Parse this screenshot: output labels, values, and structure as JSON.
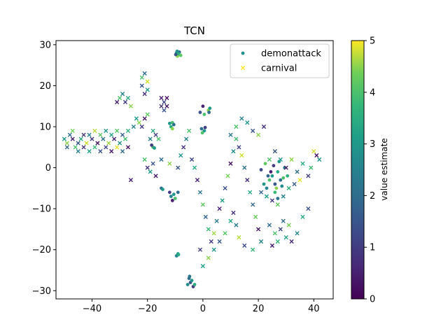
{
  "chart_data": {
    "type": "scatter",
    "title": "TCN",
    "xlim": [
      -53,
      47
    ],
    "ylim": [
      -32,
      31
    ],
    "xticks": [
      -40,
      -20,
      0,
      20,
      40
    ],
    "yticks": [
      -30,
      -20,
      -10,
      0,
      10,
      20,
      30
    ],
    "xtick_labels": [
      "−40",
      "−20",
      "0",
      "20",
      "40"
    ],
    "ytick_labels": [
      "−30",
      "−20",
      "−10",
      "0",
      "10",
      "20",
      "30"
    ],
    "colormap": "viridis",
    "colorbar": {
      "label": "value estimate",
      "range": [
        0,
        5
      ],
      "ticks": [
        0,
        1,
        2,
        3,
        4,
        5
      ],
      "tick_labels": [
        "0",
        "1",
        "2",
        "3",
        "4",
        "5"
      ]
    },
    "legend": {
      "placement": "top-right",
      "entries": [
        {
          "label": "demonattack",
          "marker": "circle",
          "color": "#21918c"
        },
        {
          "label": "carnival",
          "marker": "x",
          "color": "#fde725"
        }
      ]
    },
    "series": [
      {
        "name": "demonattack",
        "marker": "circle",
        "points": [
          [
            -9.5,
            28.0,
            3.0
          ],
          [
            -9.0,
            27.5,
            4.0
          ],
          [
            -8.5,
            28.2,
            2.0
          ],
          [
            -9.2,
            27.2,
            4.5
          ],
          [
            -8.8,
            27.8,
            3.5
          ],
          [
            -9.8,
            27.6,
            1.5
          ],
          [
            -8.0,
            27.4,
            4.2
          ],
          [
            -9.3,
            28.4,
            2.8
          ],
          [
            -11.0,
            11.0,
            4.0
          ],
          [
            -11.5,
            10.0,
            3.5
          ],
          [
            -10.5,
            10.5,
            2.0
          ],
          [
            -11.0,
            9.5,
            4.5
          ],
          [
            -12.0,
            10.8,
            3.0
          ],
          [
            -18.0,
            5.0,
            4.0
          ],
          [
            -18.5,
            5.5,
            1.0
          ],
          [
            -17.5,
            4.8,
            3.0
          ],
          [
            -12.0,
            -6.0,
            1.0
          ],
          [
            -11.5,
            -7.0,
            2.5
          ],
          [
            -10.5,
            -6.5,
            3.0
          ],
          [
            -11.0,
            -8.0,
            0.5
          ],
          [
            -10.0,
            -7.5,
            4.0
          ],
          [
            -9.0,
            -6.0,
            2.0
          ],
          [
            -9.0,
            -21.0,
            3.0
          ],
          [
            -9.5,
            -21.5,
            2.5
          ],
          [
            -8.8,
            -21.2,
            3.5
          ],
          [
            -5.0,
            -27.0,
            2.0
          ],
          [
            -4.5,
            -28.0,
            1.5
          ],
          [
            -4.0,
            -27.5,
            3.0
          ],
          [
            -5.5,
            -28.5,
            2.8
          ],
          [
            -3.5,
            -29.0,
            1.0
          ],
          [
            -4.8,
            -26.5,
            2.2
          ],
          [
            -3.0,
            -28.5,
            3.5
          ],
          [
            0.0,
            15.0,
            0.5
          ],
          [
            -1.0,
            13.5,
            1.5
          ],
          [
            0.5,
            13.0,
            4.0
          ],
          [
            2.0,
            14.0,
            4.5
          ],
          [
            2.5,
            14.5,
            3.0
          ],
          [
            2.2,
            13.5,
            2.0
          ],
          [
            -0.5,
            9.5,
            2.0
          ],
          [
            0.5,
            9.0,
            3.0
          ],
          [
            -0.2,
            8.5,
            4.0
          ],
          [
            0.8,
            9.8,
            1.0
          ],
          [
            -15.0,
            -5.0,
            2.0
          ],
          [
            -14.5,
            -5.3,
            3.0
          ],
          [
            22.0,
            -4.0,
            3.0
          ],
          [
            23.0,
            -5.0,
            2.5
          ],
          [
            24.0,
            -3.0,
            4.0
          ],
          [
            25.0,
            -2.0,
            3.0
          ],
          [
            26.0,
            -4.0,
            1.5
          ],
          [
            27.0,
            -1.0,
            3.5
          ],
          [
            28.0,
            -3.0,
            2.0
          ],
          [
            25.5,
            0.5,
            1.0
          ],
          [
            27.5,
            1.5,
            3.0
          ],
          [
            29.0,
            -2.5,
            4.0
          ],
          [
            24.5,
            -1.0,
            0.5
          ],
          [
            26.5,
            -5.0,
            4.5
          ],
          [
            28.5,
            -4.5,
            2.8
          ],
          [
            23.5,
            -2.0,
            1.8
          ],
          [
            26.0,
            -6.0,
            3.8
          ],
          [
            27.0,
            -7.5,
            2.2
          ],
          [
            21.0,
            -0.5,
            1.2
          ],
          [
            22.5,
            1.0,
            4.2
          ],
          [
            29.5,
            0.0,
            2.5
          ],
          [
            30.5,
            -2.0,
            3.6
          ]
        ]
      },
      {
        "name": "carnival",
        "marker": "x",
        "points": [
          [
            -50,
            7,
            3.0
          ],
          [
            -49,
            6,
            4.5
          ],
          [
            -48,
            8,
            2.0
          ],
          [
            -47,
            7,
            0.5
          ],
          [
            -46,
            5,
            4.0
          ],
          [
            -45,
            6,
            1.5
          ],
          [
            -44,
            7,
            3.5
          ],
          [
            -43,
            5,
            0.8
          ],
          [
            -42,
            6,
            4.8
          ],
          [
            -41,
            8,
            2.5
          ],
          [
            -40,
            7,
            1.0
          ],
          [
            -39,
            5,
            3.8
          ],
          [
            -38,
            6,
            0.3
          ],
          [
            -37,
            8,
            4.2
          ],
          [
            -36,
            7,
            2.2
          ],
          [
            -35,
            5,
            1.2
          ],
          [
            -34,
            6,
            4.6
          ],
          [
            -33,
            8,
            3.2
          ],
          [
            -32,
            7,
            0.6
          ],
          [
            -31,
            5,
            4.9
          ],
          [
            -30,
            6,
            2.8
          ],
          [
            -29,
            8,
            1.6
          ],
          [
            -28,
            7,
            3.9
          ],
          [
            -27,
            5,
            0.2
          ],
          [
            -49,
            5,
            1.8
          ],
          [
            -47,
            9,
            4.4
          ],
          [
            -45,
            4,
            2.6
          ],
          [
            -43,
            8,
            0.9
          ],
          [
            -41,
            4,
            3.3
          ],
          [
            -39,
            9,
            4.7
          ],
          [
            -37,
            4,
            1.4
          ],
          [
            -35,
            9,
            2.9
          ],
          [
            -33,
            4,
            0.4
          ],
          [
            -31,
            9,
            4.1
          ],
          [
            -29,
            4,
            2.0
          ],
          [
            -27,
            9,
            3.6
          ],
          [
            -30,
            17,
            4.0
          ],
          [
            -29,
            18,
            2.5
          ],
          [
            -28,
            16,
            1.0
          ],
          [
            -27,
            17,
            3.5
          ],
          [
            -26,
            15,
            4.5
          ],
          [
            -31,
            16,
            0.5
          ],
          [
            -22,
            22,
            4.0
          ],
          [
            -21,
            23,
            2.0
          ],
          [
            -20,
            21,
            4.8
          ],
          [
            -22,
            20,
            1.5
          ],
          [
            -20,
            19,
            3.0
          ],
          [
            -21,
            18,
            0.8
          ],
          [
            -24,
            12,
            3.0
          ],
          [
            -23,
            11,
            4.5
          ],
          [
            -22,
            10,
            1.0
          ],
          [
            -25,
            10,
            2.5
          ],
          [
            -21,
            12,
            0.3
          ],
          [
            -20,
            13,
            4.2
          ],
          [
            -15,
            17,
            0.5
          ],
          [
            -14,
            16,
            1.2
          ],
          [
            -13,
            15,
            0.3
          ],
          [
            -15,
            15,
            0.8
          ],
          [
            -14,
            14,
            1.5
          ],
          [
            -13,
            17,
            0.2
          ],
          [
            -18,
            9,
            3.5
          ],
          [
            -17,
            8,
            1.0
          ],
          [
            -16,
            7,
            4.0
          ],
          [
            -19,
            7,
            2.5
          ],
          [
            -20,
            0,
            0.8
          ],
          [
            -19,
            -1,
            3.0
          ],
          [
            -18,
            1,
            1.5
          ],
          [
            -21,
            2,
            4.0
          ],
          [
            -17,
            -2,
            0.3
          ],
          [
            -26,
            -3,
            0.5
          ],
          [
            -15,
            2,
            2.0
          ],
          [
            -12,
            1,
            4.5
          ],
          [
            -9,
            0,
            1.5
          ],
          [
            -8,
            3,
            3.0
          ],
          [
            -7,
            5,
            0.8
          ],
          [
            -6,
            7,
            2.5
          ],
          [
            -5,
            9,
            4.0
          ],
          [
            -4,
            2,
            1.2
          ],
          [
            -3,
            0,
            3.5
          ],
          [
            -2,
            -3,
            0.5
          ],
          [
            -1,
            -6,
            2.2
          ],
          [
            0,
            -9,
            4.2
          ],
          [
            1,
            -12,
            1.8
          ],
          [
            2,
            -15,
            3.8
          ],
          [
            3,
            -18,
            0.9
          ],
          [
            4,
            -16,
            4.6
          ],
          [
            5,
            -13,
            2.4
          ],
          [
            6,
            -10,
            0.6
          ],
          [
            7,
            -8,
            3.1
          ],
          [
            8,
            -5,
            1.4
          ],
          [
            9,
            -2,
            4.4
          ],
          [
            10,
            1,
            0.2
          ],
          [
            11,
            4,
            2.7
          ],
          [
            12,
            7,
            3.9
          ],
          [
            13,
            5,
            1.1
          ],
          [
            14,
            3,
            4.8
          ],
          [
            15,
            0,
            2.1
          ],
          [
            16,
            -3,
            0.7
          ],
          [
            17,
            -6,
            3.4
          ],
          [
            18,
            -9,
            1.9
          ],
          [
            19,
            -12,
            4.3
          ],
          [
            20,
            -15,
            0.4
          ],
          [
            21,
            -18,
            2.6
          ],
          [
            18,
            -20,
            3.7
          ],
          [
            15,
            -19,
            1.3
          ],
          [
            13,
            -17,
            4.7
          ],
          [
            12,
            -14,
            2.3
          ],
          [
            11,
            -11,
            0.8
          ],
          [
            10,
            -13,
            3.3
          ],
          [
            8,
            -16,
            4.1
          ],
          [
            6,
            -18,
            1.6
          ],
          [
            4,
            -20,
            2.9
          ],
          [
            2,
            -22,
            4.5
          ],
          [
            0,
            -24,
            3.2
          ],
          [
            -1,
            -20,
            1.0
          ],
          [
            12,
            10,
            4.0
          ],
          [
            14,
            12,
            2.5
          ],
          [
            16,
            11,
            3.0
          ],
          [
            18,
            9,
            1.5
          ],
          [
            20,
            8,
            4.5
          ],
          [
            22,
            10,
            0.8
          ],
          [
            10,
            8,
            2.2
          ],
          [
            24,
            2,
            4.0
          ],
          [
            26,
            4,
            1.5
          ],
          [
            28,
            2,
            3.0
          ],
          [
            30,
            0,
            0.5
          ],
          [
            32,
            2,
            4.5
          ],
          [
            34,
            -1,
            2.0
          ],
          [
            36,
            1,
            3.5
          ],
          [
            38,
            -2,
            1.0
          ],
          [
            40,
            4,
            4.8
          ],
          [
            41,
            3,
            0.3
          ],
          [
            42,
            2,
            2.8
          ],
          [
            39,
            0,
            3.9
          ],
          [
            35,
            -3,
            4.9
          ],
          [
            33,
            -4,
            1.7
          ],
          [
            31,
            -5,
            3.6
          ],
          [
            29,
            -7,
            2.4
          ],
          [
            27,
            -9,
            4.2
          ],
          [
            25,
            -8,
            0.9
          ],
          [
            23,
            -7,
            3.2
          ],
          [
            21,
            -6,
            1.8
          ],
          [
            24,
            -14,
            2.0
          ],
          [
            26,
            -16,
            4.0
          ],
          [
            28,
            -15,
            1.2
          ],
          [
            30,
            -17,
            3.3
          ],
          [
            32,
            -18,
            0.7
          ],
          [
            34,
            -16,
            2.6
          ],
          [
            31,
            -14,
            4.4
          ],
          [
            29,
            -13,
            1.9
          ],
          [
            27,
            -18,
            3.7
          ],
          [
            25,
            -19,
            0.4
          ],
          [
            36,
            -12,
            3.4
          ],
          [
            38,
            -10,
            1.5
          ]
        ]
      }
    ]
  }
}
